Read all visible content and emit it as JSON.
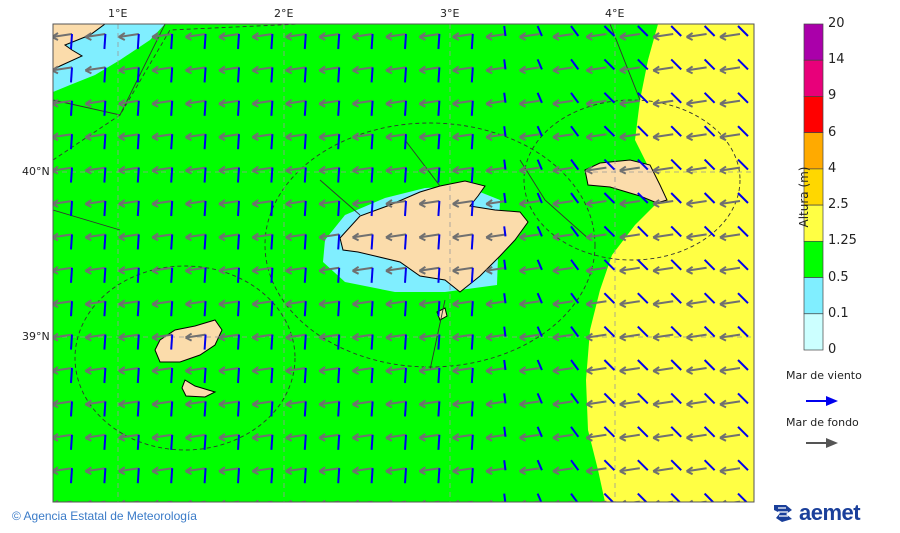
{
  "map": {
    "lon_labels": [
      "1°E",
      "2°E",
      "3°E",
      "4°E"
    ],
    "lat_labels": [
      "40°N",
      "39°N"
    ],
    "colors": {
      "land": "#fbdcab",
      "sea_green": "#00ff00",
      "sea_yellow": "#ffff44",
      "sea_lightblue": "#80eeff",
      "wind_arrow": "#0000ee",
      "swell_arrow": "#707070"
    }
  },
  "colorbar": {
    "title": "Altura (m)",
    "levels": [
      "20",
      "14",
      "9",
      "6",
      "4",
      "2.5",
      "1.25",
      "0.5",
      "0.1",
      "0"
    ],
    "colors": [
      "#aa00aa",
      "#e8007a",
      "#ff0000",
      "#ffaa00",
      "#ffd700",
      "#ffff44",
      "#00ff00",
      "#80eeff",
      "#ccffff"
    ]
  },
  "legend": {
    "wind_sea": "Mar de viento",
    "swell": "Mar de fondo"
  },
  "footer": {
    "credit": "© Agencia Estatal de Meteorología",
    "logo": "aemet"
  }
}
